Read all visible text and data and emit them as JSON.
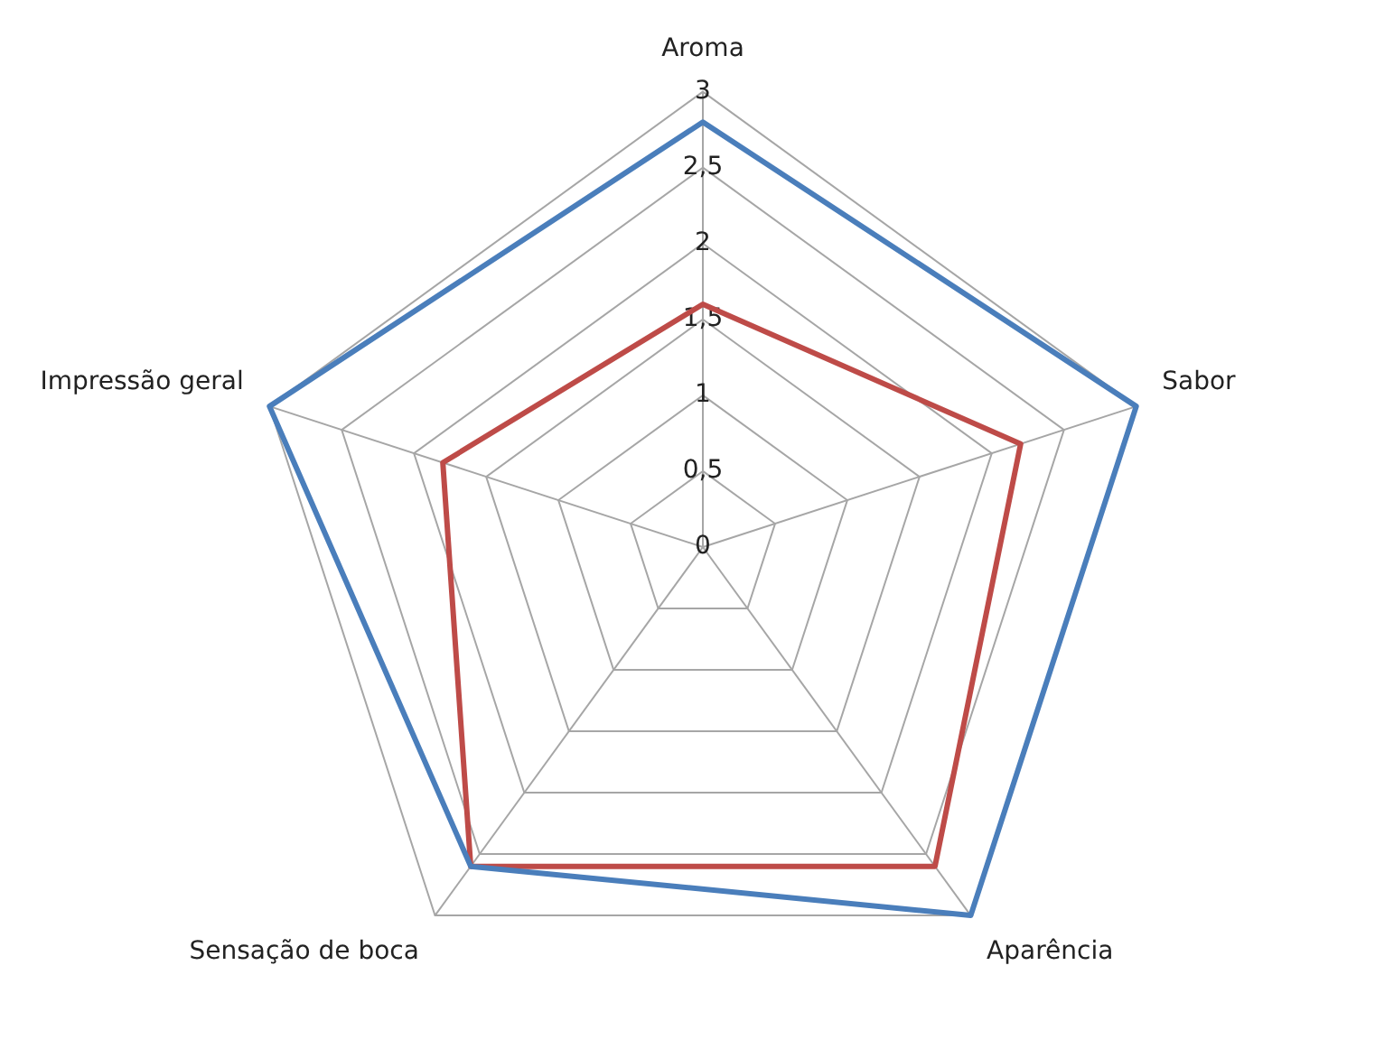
{
  "chart_data": {
    "type": "radar",
    "categories": [
      "Aroma",
      "Sabor",
      "Aparência",
      "Sensação de boca",
      "Impressão geral"
    ],
    "series": [
      {
        "color": "#4a7ebb",
        "values": [
          2.8,
          3,
          3,
          2.6,
          3
        ]
      },
      {
        "color": "#be4b48",
        "values": [
          1.6,
          2.2,
          2.6,
          2.6,
          1.8
        ]
      }
    ],
    "ylim": [
      0,
      3
    ],
    "yticks": [
      0,
      {
        "value": 0.5,
        "label": "0,5"
      },
      1,
      {
        "value": 1.5,
        "label": "1,5"
      },
      2,
      {
        "value": 2.5,
        "label": "2,5"
      },
      3
    ],
    "grid": true,
    "legend": false,
    "marker": "none",
    "line_style": "solid"
  }
}
